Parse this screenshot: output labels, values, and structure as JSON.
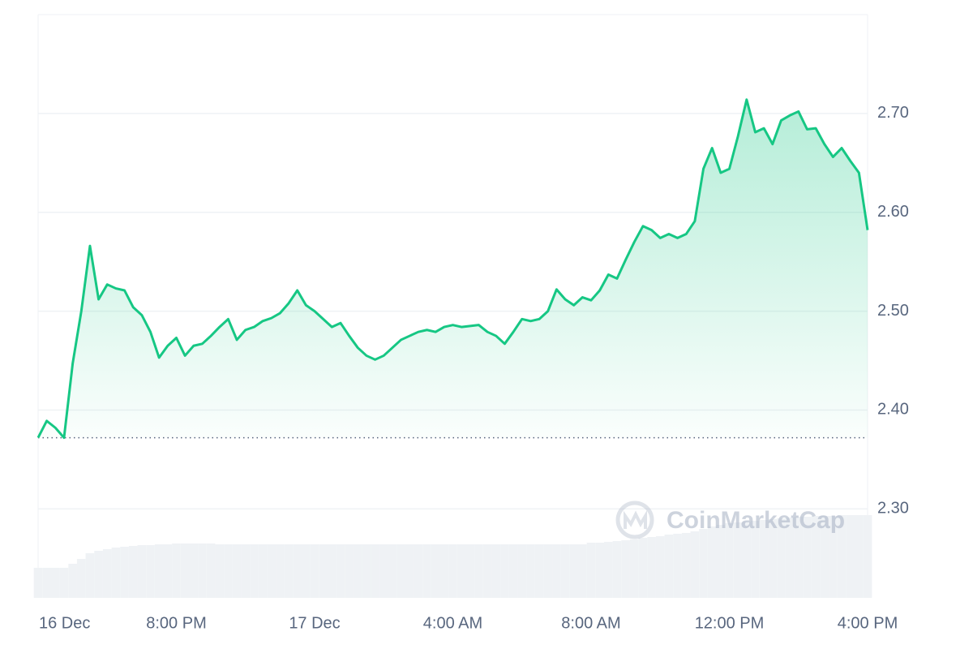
{
  "chart_data": {
    "type": "line",
    "categories": [
      "16 Dec",
      null,
      null,
      null,
      null,
      null,
      null,
      null,
      null,
      null,
      null,
      null,
      null,
      null,
      null,
      null,
      "8:00 PM",
      null,
      null,
      null,
      null,
      null,
      null,
      null,
      null,
      null,
      null,
      null,
      null,
      null,
      null,
      null,
      "17 Dec",
      null,
      null,
      null,
      null,
      null,
      null,
      null,
      null,
      null,
      null,
      null,
      null,
      null,
      null,
      null,
      "4:00 AM",
      null,
      null,
      null,
      null,
      null,
      null,
      null,
      null,
      null,
      null,
      null,
      null,
      null,
      null,
      null,
      "8:00 AM",
      null,
      null,
      null,
      null,
      null,
      null,
      null,
      null,
      null,
      null,
      null,
      null,
      null,
      null,
      null,
      "12:00 PM",
      null,
      null,
      null,
      null,
      null,
      null,
      null,
      null,
      null,
      null,
      null,
      null,
      null,
      null,
      null,
      "4:00 PM"
    ],
    "values": [
      2.372,
      2.389,
      2.382,
      2.372,
      2.447,
      2.5,
      2.566,
      2.512,
      2.527,
      2.523,
      2.521,
      2.504,
      2.496,
      2.479,
      2.453,
      2.465,
      2.473,
      2.455,
      2.465,
      2.467,
      2.475,
      2.484,
      2.492,
      2.471,
      2.481,
      2.484,
      2.49,
      2.493,
      2.498,
      2.508,
      2.521,
      2.506,
      2.5,
      2.492,
      2.484,
      2.488,
      2.475,
      2.463,
      2.455,
      2.451,
      2.455,
      2.463,
      2.471,
      2.475,
      2.479,
      2.481,
      2.479,
      2.484,
      2.486,
      2.484,
      2.485,
      2.486,
      2.479,
      2.475,
      2.467,
      2.479,
      2.492,
      2.49,
      2.492,
      2.5,
      2.522,
      2.512,
      2.506,
      2.514,
      2.511,
      2.521,
      2.537,
      2.533,
      2.552,
      2.57,
      2.586,
      2.582,
      2.574,
      2.578,
      2.574,
      2.578,
      2.591,
      2.644,
      2.665,
      2.64,
      2.644,
      2.677,
      2.714,
      2.681,
      2.685,
      2.669,
      2.693,
      2.698,
      2.702,
      2.684,
      2.685,
      2.669,
      2.656,
      2.665,
      2.652,
      2.64,
      2.582
    ],
    "color": "#16c784",
    "baseline": 2.372,
    "ylim": [
      2.21,
      2.8
    ],
    "yticks": [
      {
        "value": 2.3,
        "label": "2.30"
      },
      {
        "value": 2.4,
        "label": "2.40"
      },
      {
        "value": 2.5,
        "label": "2.50"
      },
      {
        "value": 2.6,
        "label": "2.60"
      },
      {
        "value": 2.7,
        "label": "2.70"
      }
    ],
    "grid": true,
    "volume": {
      "axis": "y2",
      "color": "#eff2f5",
      "values": [
        37,
        37,
        37,
        37,
        42,
        48,
        55,
        58,
        60,
        62,
        63,
        64,
        65,
        65,
        66,
        66,
        67,
        67,
        67,
        67,
        67,
        66,
        66,
        66,
        66,
        66,
        66,
        66,
        66,
        66,
        66,
        66,
        66,
        66,
        66,
        66,
        66,
        66,
        66,
        66,
        66,
        66,
        66,
        66,
        66,
        66,
        66,
        66,
        66,
        66,
        66,
        66,
        66,
        66,
        66,
        66,
        66,
        66,
        66,
        66,
        66,
        66,
        66,
        66,
        68,
        68,
        69,
        70,
        71,
        72,
        74,
        75,
        76,
        78,
        79,
        80,
        82,
        85,
        88,
        90,
        92,
        93,
        94,
        95,
        96,
        97,
        98,
        99,
        100,
        100,
        101,
        101,
        101,
        102,
        102,
        102,
        102
      ]
    },
    "y2lim": [
      0,
      719
    ],
    "watermark": "CoinMarketCap"
  }
}
